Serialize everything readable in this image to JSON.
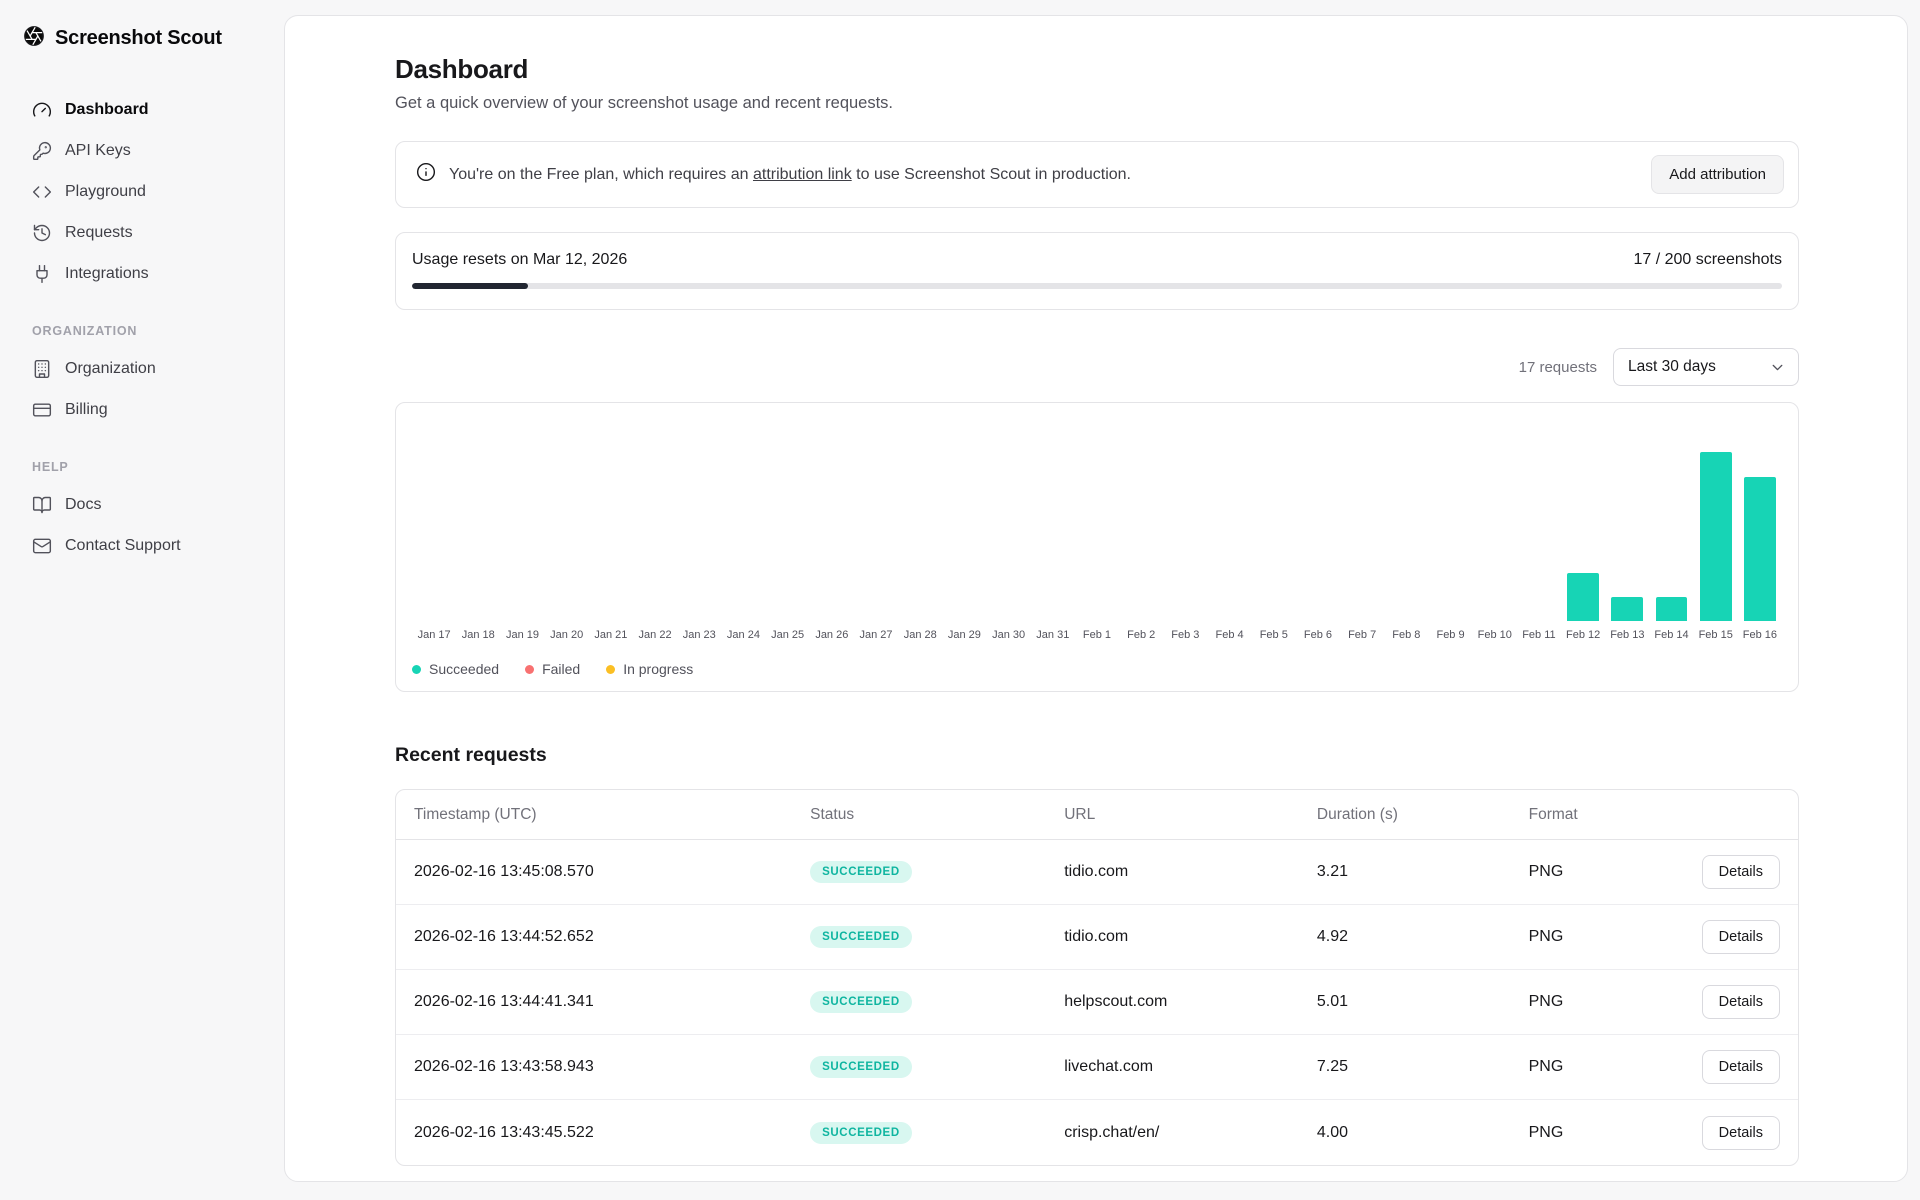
{
  "app": {
    "name": "Screenshot Scout"
  },
  "sidebar": {
    "nav": [
      {
        "label": "Dashboard",
        "icon": "gauge",
        "active": true
      },
      {
        "label": "API Keys",
        "icon": "key",
        "active": false
      },
      {
        "label": "Playground",
        "icon": "code",
        "active": false
      },
      {
        "label": "Requests",
        "icon": "history",
        "active": false
      },
      {
        "label": "Integrations",
        "icon": "plug",
        "active": false
      }
    ],
    "sections": [
      {
        "title": "ORGANIZATION",
        "items": [
          {
            "label": "Organization",
            "icon": "building"
          },
          {
            "label": "Billing",
            "icon": "credit-card"
          }
        ]
      },
      {
        "title": "HELP",
        "items": [
          {
            "label": "Docs",
            "icon": "book"
          },
          {
            "label": "Contact Support",
            "icon": "mail"
          }
        ]
      }
    ]
  },
  "page": {
    "title": "Dashboard",
    "subtitle": "Get a quick overview of your screenshot usage and recent requests."
  },
  "banner": {
    "text_before": "You're on the Free plan, which requires an ",
    "link_text": "attribution link",
    "text_after": " to use Screenshot Scout in production.",
    "button_label": "Add attribution"
  },
  "usage": {
    "reset_text": "Usage resets on Mar 12, 2026",
    "count_text": "17 / 200 screenshots",
    "used": 17,
    "limit": 200,
    "percent": 8.5
  },
  "chart_header": {
    "requests_count": "17 requests",
    "range": "Last 30 days"
  },
  "chart_data": {
    "type": "bar",
    "categories": [
      "Jan 17",
      "Jan 18",
      "Jan 19",
      "Jan 20",
      "Jan 21",
      "Jan 22",
      "Jan 23",
      "Jan 24",
      "Jan 25",
      "Jan 26",
      "Jan 27",
      "Jan 28",
      "Jan 29",
      "Jan 30",
      "Jan 31",
      "Feb 1",
      "Feb 2",
      "Feb 3",
      "Feb 4",
      "Feb 5",
      "Feb 6",
      "Feb 7",
      "Feb 8",
      "Feb 9",
      "Feb 10",
      "Feb 11",
      "Feb 12",
      "Feb 13",
      "Feb 14",
      "Feb 15",
      "Feb 16"
    ],
    "series": [
      {
        "name": "Succeeded",
        "color": "#17d4b5",
        "values": [
          0,
          0,
          0,
          0,
          0,
          0,
          0,
          0,
          0,
          0,
          0,
          0,
          0,
          0,
          0,
          0,
          0,
          0,
          0,
          0,
          0,
          0,
          0,
          0,
          0,
          0,
          2,
          1,
          1,
          7,
          6
        ]
      },
      {
        "name": "Failed",
        "color": "#f87171",
        "values": [
          0,
          0,
          0,
          0,
          0,
          0,
          0,
          0,
          0,
          0,
          0,
          0,
          0,
          0,
          0,
          0,
          0,
          0,
          0,
          0,
          0,
          0,
          0,
          0,
          0,
          0,
          0,
          0,
          0,
          0,
          0
        ]
      },
      {
        "name": "In progress",
        "color": "#fbbf24",
        "values": [
          0,
          0,
          0,
          0,
          0,
          0,
          0,
          0,
          0,
          0,
          0,
          0,
          0,
          0,
          0,
          0,
          0,
          0,
          0,
          0,
          0,
          0,
          0,
          0,
          0,
          0,
          0,
          0,
          0,
          0,
          0
        ]
      }
    ],
    "ylim": [
      0,
      7
    ],
    "grid": false,
    "legend_position": "bottom-left"
  },
  "table": {
    "title": "Recent requests",
    "columns": [
      "Timestamp (UTC)",
      "Status",
      "URL",
      "Duration (s)",
      "Format"
    ],
    "details_label": "Details",
    "rows": [
      {
        "timestamp": "2026-02-16 13:45:08.570",
        "status": "SUCCEEDED",
        "url": "tidio.com",
        "duration": "3.21",
        "format": "PNG"
      },
      {
        "timestamp": "2026-02-16 13:44:52.652",
        "status": "SUCCEEDED",
        "url": "tidio.com",
        "duration": "4.92",
        "format": "PNG"
      },
      {
        "timestamp": "2026-02-16 13:44:41.341",
        "status": "SUCCEEDED",
        "url": "helpscout.com",
        "duration": "5.01",
        "format": "PNG"
      },
      {
        "timestamp": "2026-02-16 13:43:58.943",
        "status": "SUCCEEDED",
        "url": "livechat.com",
        "duration": "7.25",
        "format": "PNG"
      },
      {
        "timestamp": "2026-02-16 13:43:45.522",
        "status": "SUCCEEDED",
        "url": "crisp.chat/en/",
        "duration": "4.00",
        "format": "PNG"
      }
    ]
  }
}
